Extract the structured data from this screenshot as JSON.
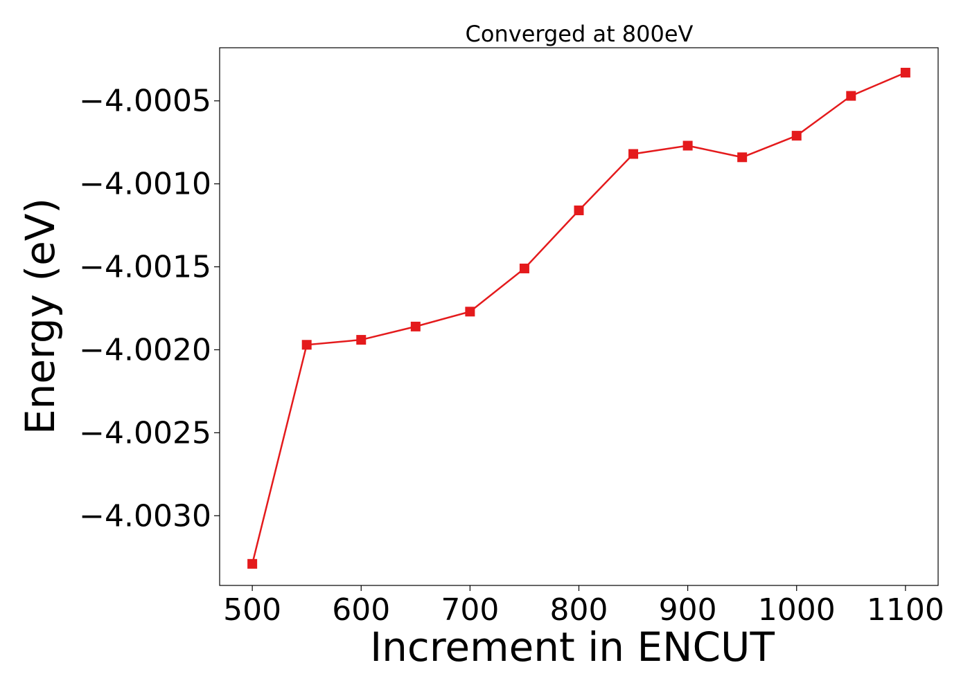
{
  "chart_data": {
    "type": "line",
    "title": "Converged at 800eV",
    "xlabel": "Increment in ENCUT",
    "ylabel": "Energy (eV)",
    "x": [
      500,
      550,
      600,
      650,
      700,
      750,
      800,
      850,
      900,
      950,
      1000,
      1050,
      1100
    ],
    "series": [
      {
        "values": [
          -4.00329,
          -4.00197,
          -4.00194,
          -4.00186,
          -4.00177,
          -4.00151,
          -4.00116,
          -4.00082,
          -4.00077,
          -4.00084,
          -4.00071,
          -4.00047,
          -4.00033
        ]
      }
    ],
    "xlim": [
      470,
      1130
    ],
    "ylim": [
      -4.00342,
      -4.00018
    ],
    "xticks": [
      500,
      600,
      700,
      800,
      900,
      1000,
      1100
    ],
    "xtick_labels": [
      "500",
      "600",
      "700",
      "800",
      "900",
      "1000",
      "1100"
    ],
    "yticks": [
      -4.0005,
      -4.001,
      -4.0015,
      -4.002,
      -4.0025,
      -4.003
    ],
    "ytick_labels": [
      "−4.0005",
      "−4.0010",
      "−4.0015",
      "−4.0020",
      "−4.0025",
      "−4.0030"
    ],
    "marker": "square",
    "grid": false,
    "legend": "none",
    "colors": {
      "series": "#e41a1c",
      "axes": "#000000",
      "background": "#ffffff"
    }
  }
}
